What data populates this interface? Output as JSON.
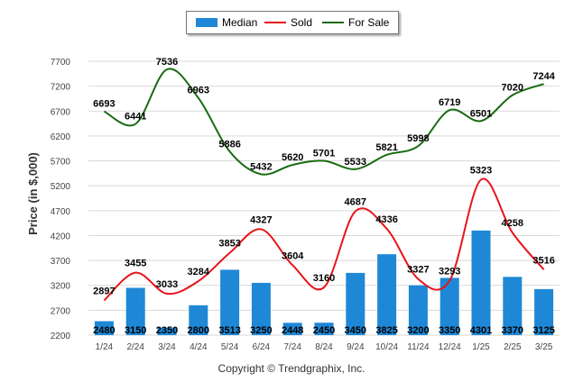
{
  "chart_data": {
    "type": "bar",
    "categories": [
      "1/24",
      "2/24",
      "3/24",
      "4/24",
      "5/24",
      "6/24",
      "7/24",
      "8/24",
      "9/24",
      "10/24",
      "11/24",
      "12/24",
      "1/25",
      "2/25",
      "3/25"
    ],
    "ylabel": "Price (in $,000)",
    "ylim": [
      2200,
      7700
    ],
    "yticks": [
      2200,
      2700,
      3200,
      3700,
      4200,
      4700,
      5200,
      5700,
      6200,
      6700,
      7200,
      7700
    ],
    "grid": true,
    "legend_position": "top-center",
    "series": [
      {
        "name": "Median",
        "type": "bar",
        "color": "#1e88d6",
        "values": [
          2480,
          3150,
          2350,
          2800,
          3513,
          3250,
          2448,
          2450,
          3450,
          3825,
          3200,
          3350,
          4301,
          3370,
          3125
        ]
      },
      {
        "name": "Sold",
        "type": "line",
        "color": "#e8141b",
        "values": [
          2897,
          3455,
          3033,
          3284,
          3853,
          4327,
          3604,
          3160,
          4687,
          4336,
          3327,
          3293,
          5323,
          4258,
          3516
        ]
      },
      {
        "name": "For Sale",
        "type": "line",
        "color": "#1a6b12",
        "values": [
          6693,
          6441,
          7536,
          6963,
          5886,
          5432,
          5620,
          5701,
          5533,
          5821,
          5998,
          6719,
          6501,
          7020,
          7244
        ]
      }
    ]
  },
  "footer": {
    "copyright": "Copyright © Trendgraphix, Inc."
  }
}
